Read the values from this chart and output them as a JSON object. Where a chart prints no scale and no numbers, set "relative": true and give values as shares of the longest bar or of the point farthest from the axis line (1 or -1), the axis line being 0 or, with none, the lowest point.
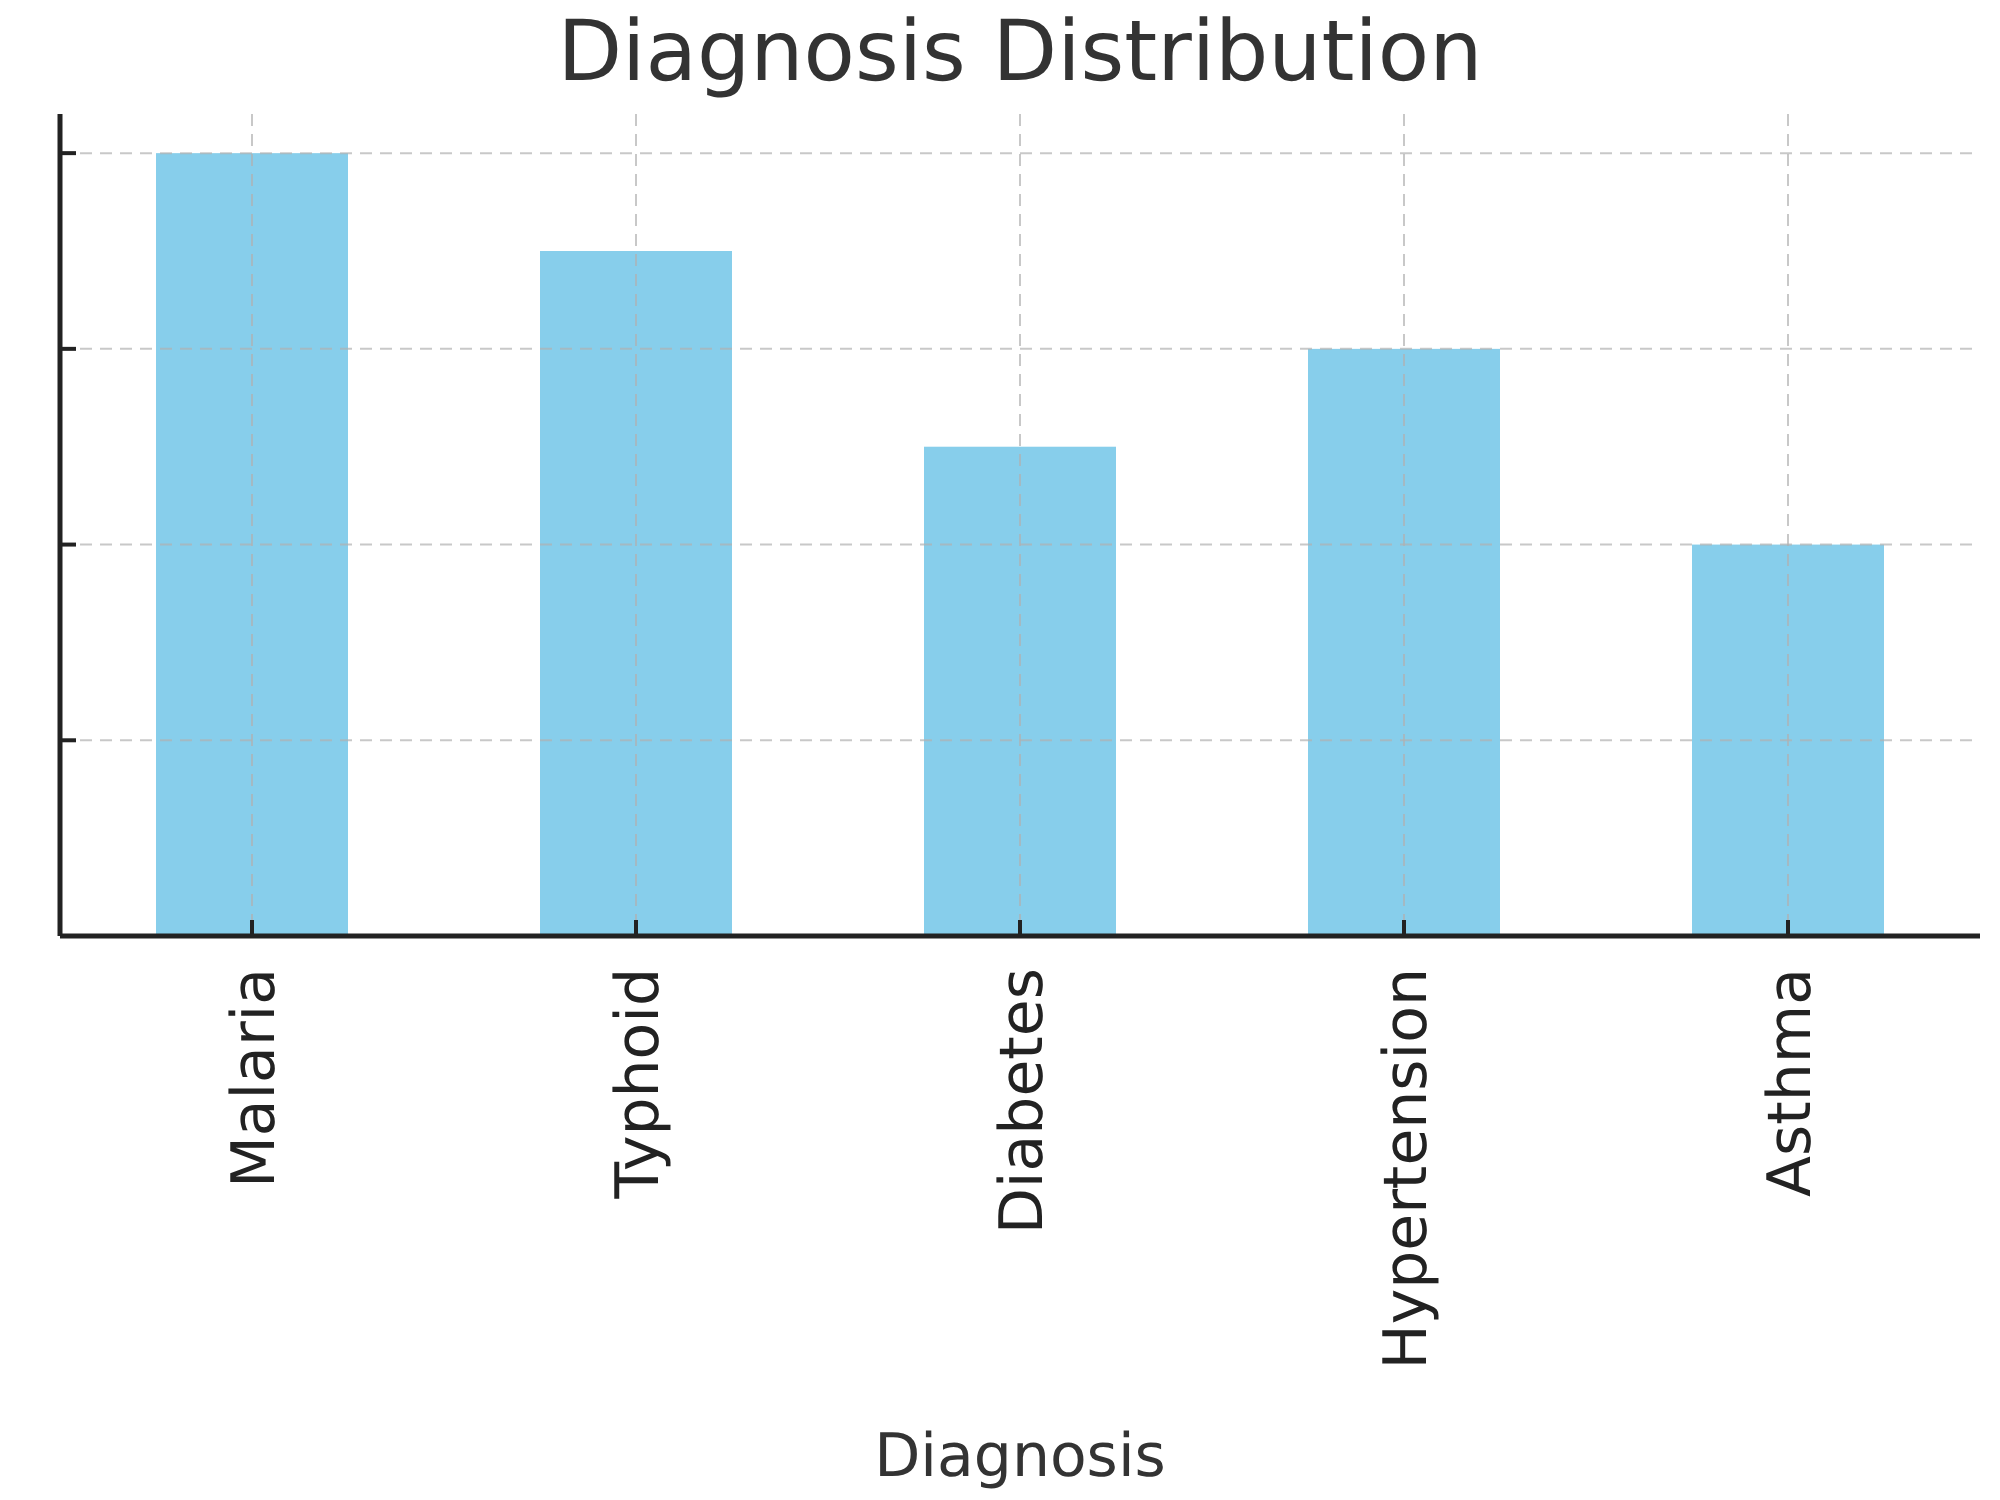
{
  "chart_data": {
    "type": "bar",
    "title": "Diagnosis Distribution",
    "xlabel": "Diagnosis",
    "categories": [
      "Malaria",
      "Typhoid",
      "Diabetes",
      "Hypertension",
      "Asthma"
    ],
    "values": [
      1,
      0.875,
      0.625,
      0.75,
      0.5
    ],
    "color": "#87ceeb",
    "relative": true,
    "grid": true
  }
}
